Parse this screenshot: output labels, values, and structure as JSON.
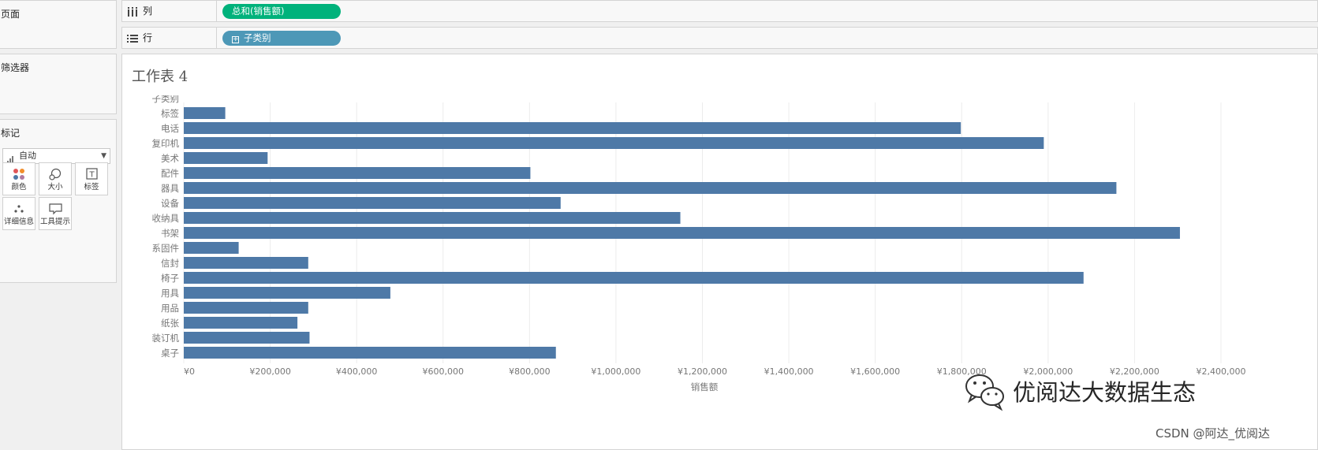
{
  "sidebar": {
    "pages_title": "页面",
    "filters_title": "筛选器",
    "marks_title": "标记",
    "mark_type": "自动",
    "mark_buttons": [
      {
        "label": "颜色",
        "icon": "color-dots-icon"
      },
      {
        "label": "大小",
        "icon": "size-icon"
      },
      {
        "label": "标签",
        "icon": "text-label-icon"
      },
      {
        "label": "详细信息",
        "icon": "detail-dots-icon"
      },
      {
        "label": "工具提示",
        "icon": "tooltip-icon"
      }
    ]
  },
  "shelves": {
    "columns_label": "列",
    "columns_pill": "总和(销售额)",
    "rows_label": "行",
    "rows_pill": "子类别"
  },
  "colors": {
    "bar": "#4e79a7",
    "columns_pill": "#00b27b",
    "rows_pill": "#4d98b7"
  },
  "chart_data": {
    "type": "bar",
    "orientation": "horizontal",
    "title": "工作表 4",
    "category_header": "子类别",
    "xlabel": "销售额",
    "categories": [
      "标签",
      "电话",
      "复印机",
      "美术",
      "配件",
      "器具",
      "设备",
      "收纳具",
      "书架",
      "系固件",
      "信封",
      "椅子",
      "用具",
      "用品",
      "纸张",
      "装订机",
      "桌子"
    ],
    "values": [
      96000,
      1798000,
      1990000,
      194000,
      802000,
      2158000,
      872000,
      1149000,
      2305000,
      127000,
      288000,
      2082000,
      478000,
      288000,
      263000,
      291000,
      861000
    ],
    "xlim": [
      0,
      2400000
    ],
    "ticks": [
      0,
      200000,
      400000,
      600000,
      800000,
      1000000,
      1200000,
      1400000,
      1600000,
      1800000,
      2000000,
      2200000,
      2400000
    ],
    "tick_labels": [
      "¥0",
      "¥200,000",
      "¥400,000",
      "¥600,000",
      "¥800,000",
      "¥1,000,000",
      "¥1,200,000",
      "¥1,400,000",
      "¥1,600,000",
      "¥1,800,000",
      "¥2,000,000",
      "¥2,200,000",
      "¥2,400,000"
    ]
  },
  "watermarks": {
    "main": "优阅达大数据生态",
    "csdn": "CSDN @阿达_优阅达"
  }
}
